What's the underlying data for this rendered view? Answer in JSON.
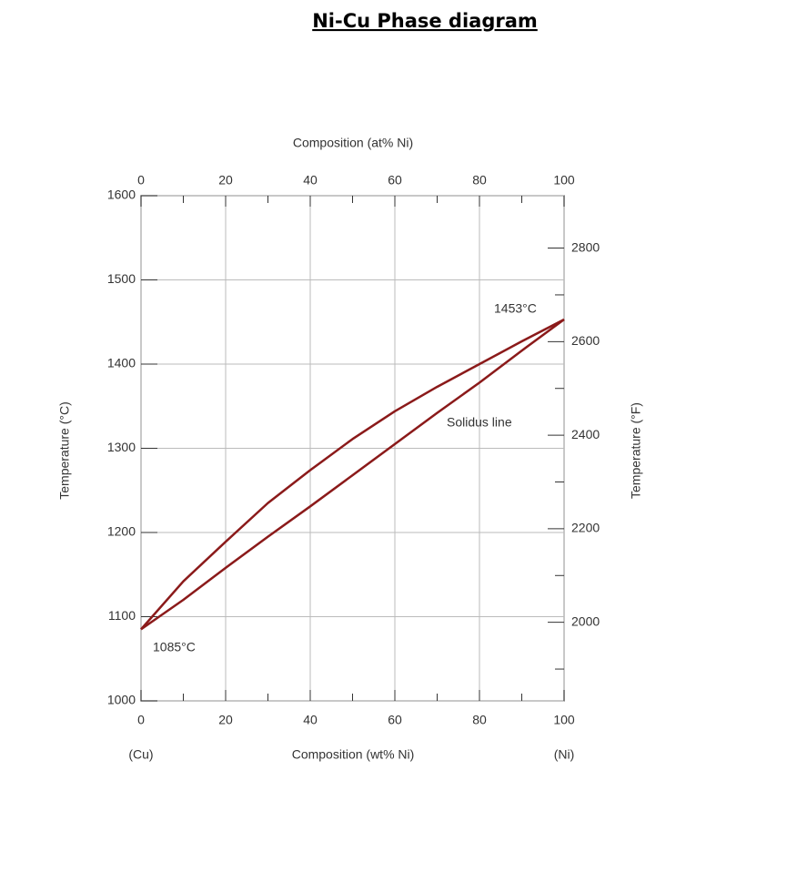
{
  "chart_data": {
    "type": "line",
    "title": "Ni-Cu Phase diagram",
    "xlabel": "Composition (wt% Ni)",
    "x2label": "Composition (at% Ni)",
    "ylabel": "Temperature (°C)",
    "y2label": "Temperature (°F)",
    "x": [
      0,
      10,
      20,
      30,
      40,
      50,
      60,
      70,
      80,
      90,
      100
    ],
    "xlim": [
      0,
      100
    ],
    "xticks": [
      0,
      20,
      40,
      60,
      80,
      100
    ],
    "xminorticks": [
      10,
      30,
      50,
      70,
      90
    ],
    "x2lim": [
      0,
      100
    ],
    "x2ticks": [
      0,
      20,
      40,
      60,
      80,
      100
    ],
    "x2minorticks": [
      10,
      30,
      50,
      70,
      90
    ],
    "ylim": [
      1000,
      1600
    ],
    "yticks": [
      1000,
      1100,
      1200,
      1300,
      1400,
      1500,
      1600
    ],
    "y2lim": [
      1832,
      2912
    ],
    "y2ticks": [
      2000,
      2200,
      2400,
      2600,
      2800
    ],
    "y2minorticks": [
      1900,
      2100,
      2300,
      2500,
      2700
    ],
    "grid": true,
    "series": [
      {
        "color": "#8b1a1a",
        "values": [
          1085,
          1142,
          1189,
          1235,
          1274,
          1311,
          1344,
          1373,
          1400,
          1427,
          1453
        ]
      },
      {
        "color": "#8b1a1a",
        "values": [
          1085,
          1120,
          1158,
          1195,
          1231,
          1268,
          1305,
          1342,
          1378,
          1416,
          1453
        ]
      }
    ],
    "annotations": [
      "1453°C",
      "1085°C",
      "Solidus line",
      "(Cu)",
      "(Ni)"
    ]
  }
}
